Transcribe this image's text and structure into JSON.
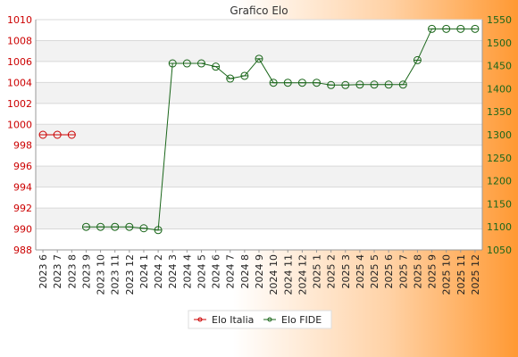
{
  "chart_data": {
    "type": "line",
    "title": "Grafico Elo",
    "grid": true,
    "legend_position": "bottom-center",
    "colors": {
      "italia": "#cc0000",
      "fide": "#1a661a",
      "grid_band": "#f2f2f2",
      "grid_line": "#d9d9d9",
      "background_left": "#ffffff",
      "background_right": "#ff9933"
    },
    "categories": [
      "2023 6",
      "2023 7",
      "2023 8",
      "2023 9",
      "2023 10",
      "2023 11",
      "2023 12",
      "2024 1",
      "2024 2",
      "2024 3",
      "2024 4",
      "2024 5",
      "2024 6",
      "2024 7",
      "2024 8",
      "2024 9",
      "2024 10",
      "2024 11",
      "2024 12",
      "2025 1",
      "2025 2",
      "2025 3",
      "2025 4",
      "2025 5",
      "2025 6",
      "2025 7",
      "2025 8",
      "2025 9",
      "2025 10",
      "2025 11",
      "2025 12"
    ],
    "y_left": {
      "min": 988,
      "max": 1010,
      "ticks": [
        988,
        990,
        992,
        994,
        996,
        998,
        1000,
        1002,
        1004,
        1006,
        1008,
        1010
      ]
    },
    "y_right": {
      "min": 1050,
      "max": 1550,
      "ticks": [
        1050,
        1100,
        1150,
        1200,
        1250,
        1300,
        1350,
        1400,
        1450,
        1500,
        1550
      ]
    },
    "series": [
      {
        "name": "Elo Italia",
        "axis": "left",
        "color": "#cc0000",
        "values": [
          999,
          999,
          999,
          null,
          null,
          null,
          null,
          null,
          null,
          null,
          null,
          null,
          null,
          null,
          null,
          null,
          null,
          null,
          null,
          null,
          null,
          null,
          null,
          null,
          null,
          null,
          null,
          null,
          null,
          null,
          null
        ]
      },
      {
        "name": "Elo FIDE",
        "axis": "right",
        "color": "#1a661a",
        "values": [
          null,
          null,
          null,
          1100,
          1100,
          1100,
          1100,
          1097,
          1093,
          1455,
          1455,
          1455,
          1448,
          1422,
          1428,
          1465,
          1413,
          1413,
          1413,
          1413,
          1408,
          1408,
          1409,
          1409,
          1409,
          1409,
          1462,
          1530,
          1530,
          1530,
          1530
        ]
      }
    ]
  }
}
